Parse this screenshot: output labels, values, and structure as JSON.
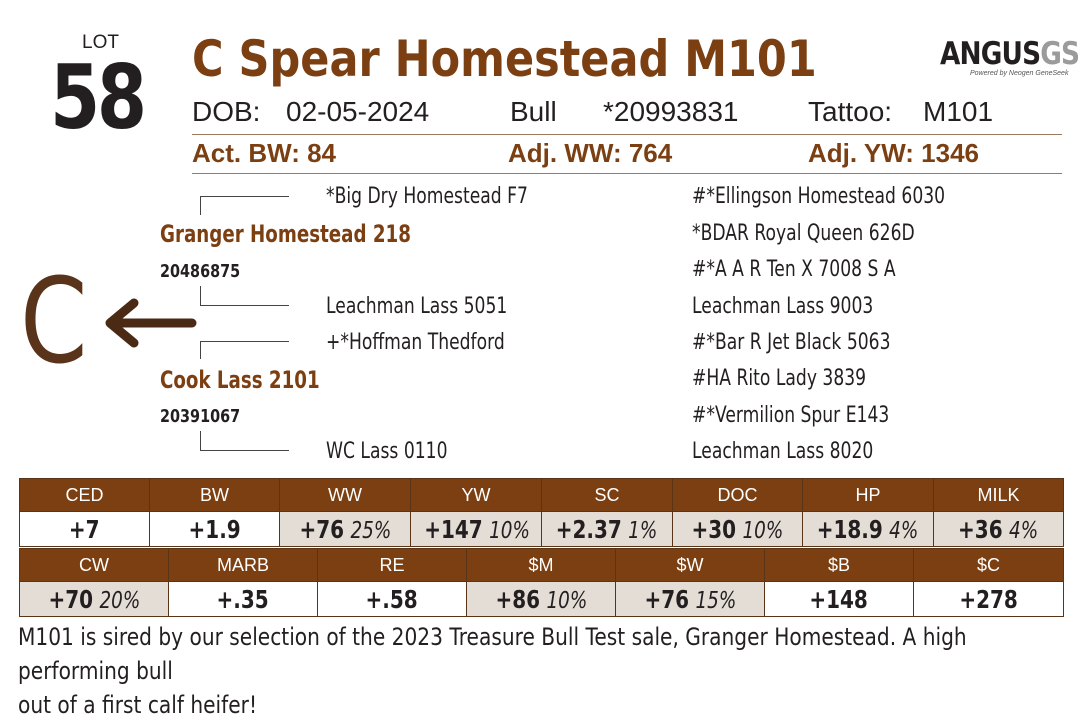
{
  "lot": {
    "label": "LOT",
    "number": "58"
  },
  "animal": {
    "name": "C Spear Homestead M101",
    "dob_label": "DOB:",
    "dob": "02-05-2024",
    "sex": "Bull",
    "reg": "*20993831",
    "tattoo_label": "Tattoo:",
    "tattoo": "M101"
  },
  "weights": {
    "act_bw": "Act. BW: 84",
    "adj_ww": "Adj. WW: 764",
    "adj_yw": "Adj. YW: 1346"
  },
  "logo": {
    "main": "ANGUS",
    "accent": "GS",
    "sub": "Powered by Neogen GeneSeek"
  },
  "brand": {
    "letter": "C",
    "arrow_icon": "left-arrow-icon"
  },
  "pedigree": {
    "sire": {
      "name": "Granger Homestead 218",
      "reg": "20486875"
    },
    "sire_sire": "*Big Dry Homestead F7",
    "sire_dam": "Leachman Lass 5051",
    "dam": {
      "name": "Cook Lass 2101",
      "reg": "20391067"
    },
    "dam_sire": "+*Hoffman Thedford",
    "dam_dam": "WC Lass 0110",
    "g3": [
      "#*Ellingson Homestead 6030",
      "*BDAR Royal Queen 626D",
      "#*A A R Ten X 7008 S A",
      "Leachman Lass 9003",
      "#*Bar R Jet Black 5063",
      "#HA Rito Lady 3839",
      "#*Vermilion Spur E143",
      "Leachman Lass 8020"
    ]
  },
  "epd_row1": [
    {
      "label": "CED",
      "value": "+7",
      "pct": ""
    },
    {
      "label": "BW",
      "value": "+1.9",
      "pct": ""
    },
    {
      "label": "WW",
      "value": "+76",
      "pct": "25%"
    },
    {
      "label": "YW",
      "value": "+147",
      "pct": "10%"
    },
    {
      "label": "SC",
      "value": "+2.37",
      "pct": "1%"
    },
    {
      "label": "DOC",
      "value": "+30",
      "pct": "10%"
    },
    {
      "label": "HP",
      "value": "+18.9",
      "pct": "4%"
    },
    {
      "label": "MILK",
      "value": "+36",
      "pct": "4%"
    }
  ],
  "epd_row2": [
    {
      "label": "CW",
      "value": "+70",
      "pct": "20%"
    },
    {
      "label": "MARB",
      "value": "+.35",
      "pct": ""
    },
    {
      "label": "RE",
      "value": "+.58",
      "pct": ""
    },
    {
      "label": "$M",
      "value": "+86",
      "pct": "10%"
    },
    {
      "label": "$W",
      "value": "+76",
      "pct": "15%"
    },
    {
      "label": "$B",
      "value": "+148",
      "pct": ""
    },
    {
      "label": "$C",
      "value": "+278",
      "pct": ""
    }
  ],
  "colors": {
    "brown": "#7b3f12",
    "highlight": "#e3ddd5",
    "text": "#231f20"
  },
  "description": {
    "line1": "M101 is sired by our selection of the 2023 Treasure Bull Test sale, Granger Homestead. A high performing bull",
    "line2": "out of a first calf heifer!"
  }
}
